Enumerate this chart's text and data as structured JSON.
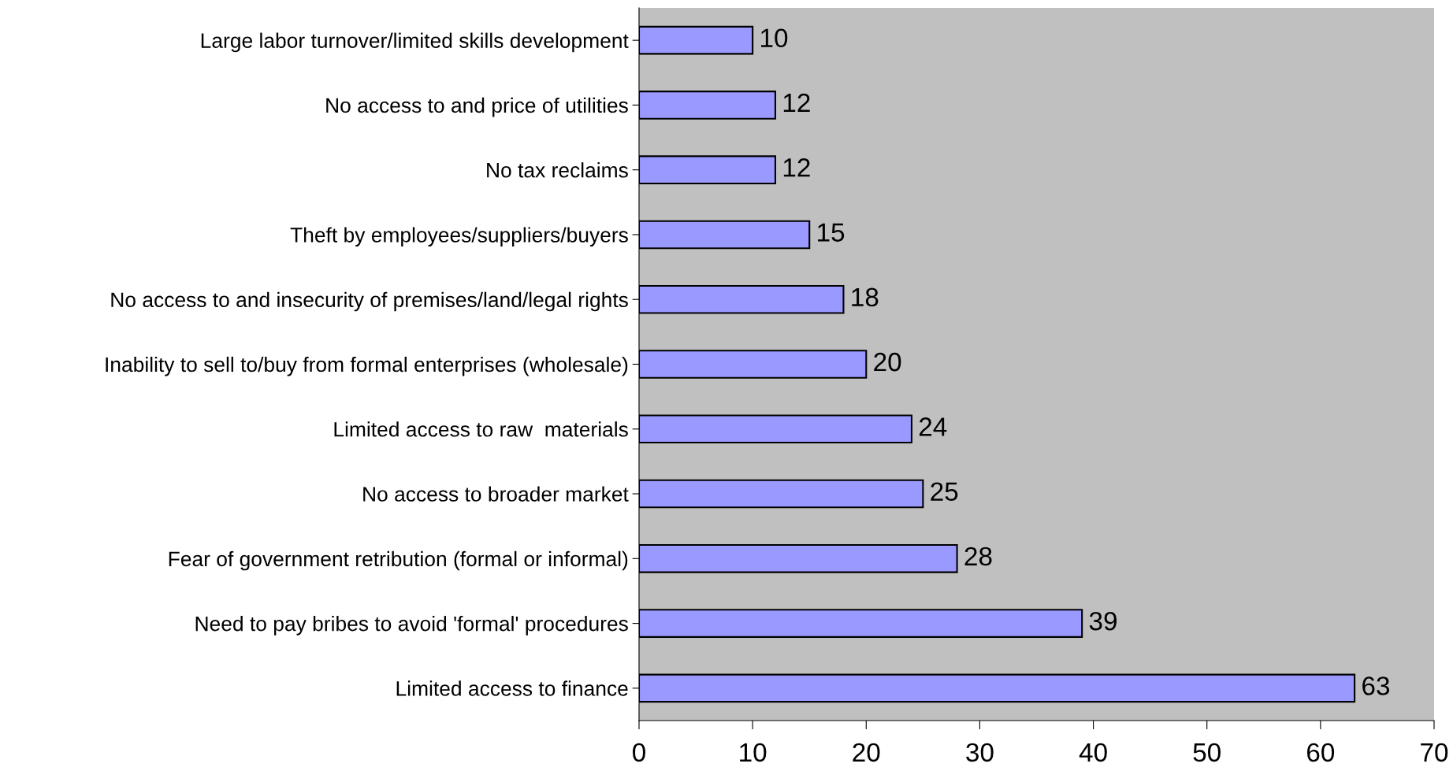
{
  "chart_data": {
    "type": "bar",
    "orientation": "horizontal",
    "categories": [
      "Large labor turnover/limited skills development",
      "No access to and price of utilities",
      "No tax reclaims",
      "Theft by employees/suppliers/buyers",
      "No access to and insecurity of premises/land/legal rights",
      "Inability to sell to/buy from formal enterprises (wholesale)",
      "Limited access to raw  materials",
      "No access to broader market",
      "Fear of government retribution (formal or informal)",
      "Need to pay bribes to avoid 'formal' procedures",
      "Limited access to finance"
    ],
    "values": [
      10,
      12,
      12,
      15,
      18,
      20,
      24,
      25,
      28,
      39,
      63
    ],
    "color": "#9999ff",
    "xlim": [
      0,
      70
    ],
    "xticks": [
      0,
      10,
      20,
      30,
      40,
      50,
      60,
      70
    ],
    "data_labels": true,
    "grid": false,
    "legend": false
  }
}
